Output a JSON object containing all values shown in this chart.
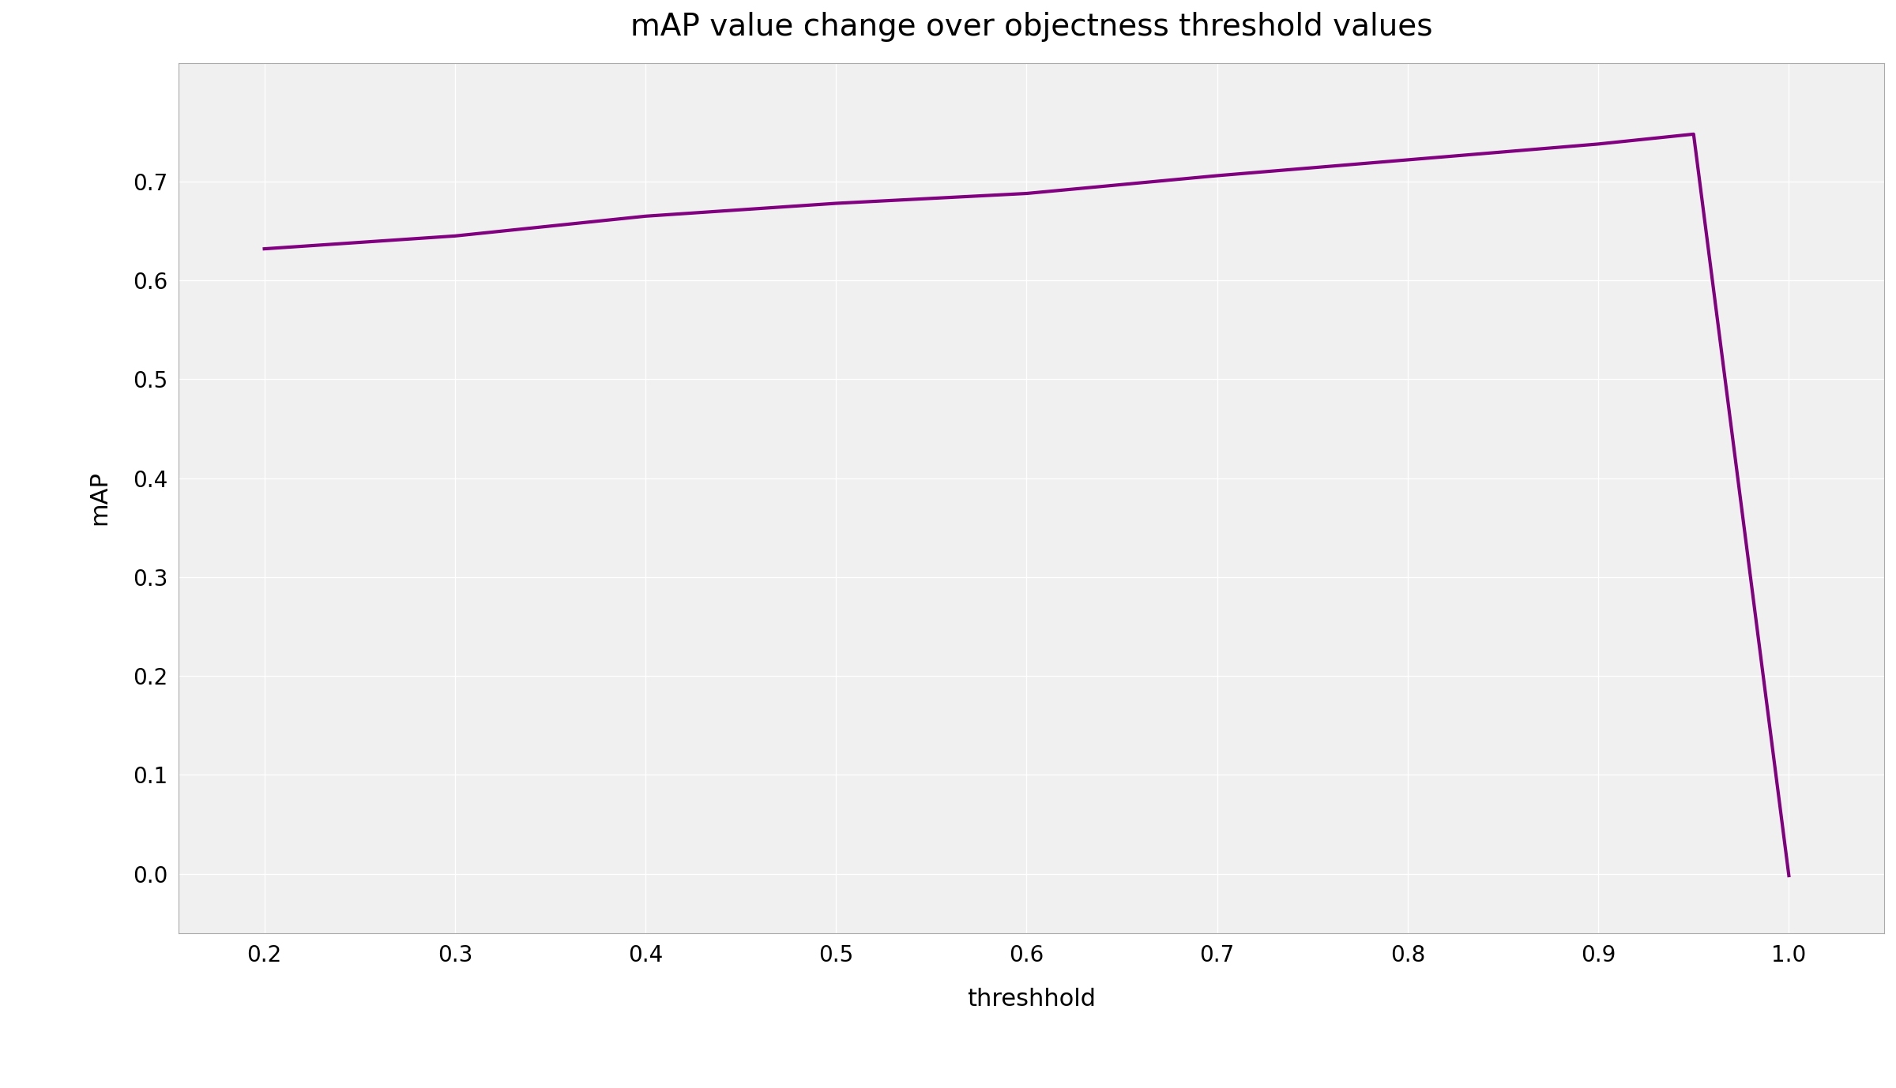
{
  "title": "mAP value change over objectness threshold values",
  "xlabel": "threshhold",
  "ylabel": "mAP",
  "x": [
    0.2,
    0.3,
    0.4,
    0.5,
    0.6,
    0.7,
    0.8,
    0.9,
    0.95,
    1.0
  ],
  "y": [
    0.632,
    0.645,
    0.665,
    0.678,
    0.688,
    0.706,
    0.722,
    0.738,
    0.748,
    -0.002
  ],
  "line_color": "#800080",
  "line_width": 3.0,
  "xlim": [
    0.155,
    1.05
  ],
  "ylim": [
    -0.06,
    0.82
  ],
  "xticks": [
    0.2,
    0.3,
    0.4,
    0.5,
    0.6,
    0.7,
    0.8,
    0.9,
    1.0
  ],
  "yticks": [
    0.0,
    0.1,
    0.2,
    0.3,
    0.4,
    0.5,
    0.6,
    0.7
  ],
  "plot_bg_color": "#f0f0f0",
  "fig_bg_color": "#ffffff",
  "grid_color": "#ffffff",
  "title_fontsize": 28,
  "label_fontsize": 22,
  "tick_fontsize": 20,
  "spine_color": "#aaaaaa"
}
